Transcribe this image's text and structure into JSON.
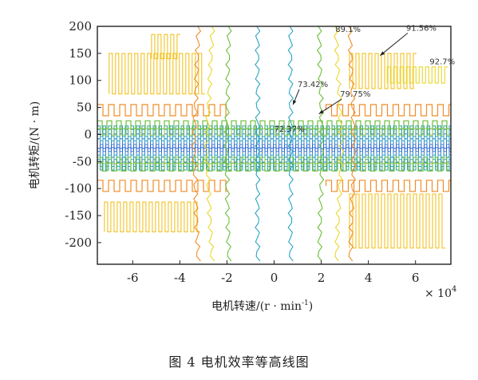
{
  "figure": {
    "caption": "图 4   电机效率等高线图"
  },
  "chart_data": {
    "type": "contour",
    "title": "",
    "xlabel": "电机转速/(r · min",
    "xlabel_sup": "-1",
    "xlabel_close": ")",
    "ylabel": "电机转矩/(N · m)",
    "x_multiplier": "× 10",
    "x_multiplier_exp": "4",
    "xlim": [
      -75000,
      75000
    ],
    "ylim": [
      -240,
      200
    ],
    "x_ticks": [
      -60000,
      -40000,
      -20000,
      0,
      20000,
      40000,
      60000
    ],
    "x_tick_labels": [
      "-6",
      "-4",
      "-2",
      "0",
      "2",
      "4",
      "6"
    ],
    "y_ticks": [
      200,
      150,
      100,
      50,
      0,
      -50,
      -100,
      -150,
      -200
    ],
    "y_tick_labels": [
      "200",
      "150",
      "100",
      "50",
      "0",
      "-50",
      "-100",
      "-150",
      "-200"
    ],
    "grid": false,
    "levels": [
      {
        "label": "72.37%",
        "value": 72.37,
        "color": "#1f5fd0"
      },
      {
        "label": "73.42%",
        "value": 73.42,
        "color": "#2aa6c4"
      },
      {
        "label": "79.75%",
        "value": 79.75,
        "color": "#6cbf3a"
      },
      {
        "label": "89.1%",
        "value": 89.1,
        "color": "#f08c28"
      },
      {
        "label": "91.56%",
        "value": 91.56,
        "color": "#f2c224"
      },
      {
        "label": "92.7%",
        "value": 92.7,
        "color": "#e8d82a"
      }
    ],
    "annotations": [
      {
        "text": "72.37%",
        "x": 0,
        "y": 5
      },
      {
        "text": "73.42%",
        "x": 10000,
        "y": 88,
        "arrow_to": [
          8000,
          55
        ]
      },
      {
        "text": "79.75%",
        "x": 28000,
        "y": 70,
        "arrow_to": [
          19000,
          38
        ]
      },
      {
        "text": "89.1%",
        "x": 26000,
        "y": 190
      },
      {
        "text": "91.56%",
        "x": 56000,
        "y": 192,
        "arrow_to": [
          45000,
          146
        ]
      },
      {
        "text": "92.7%",
        "x": 66000,
        "y": 130
      }
    ]
  }
}
